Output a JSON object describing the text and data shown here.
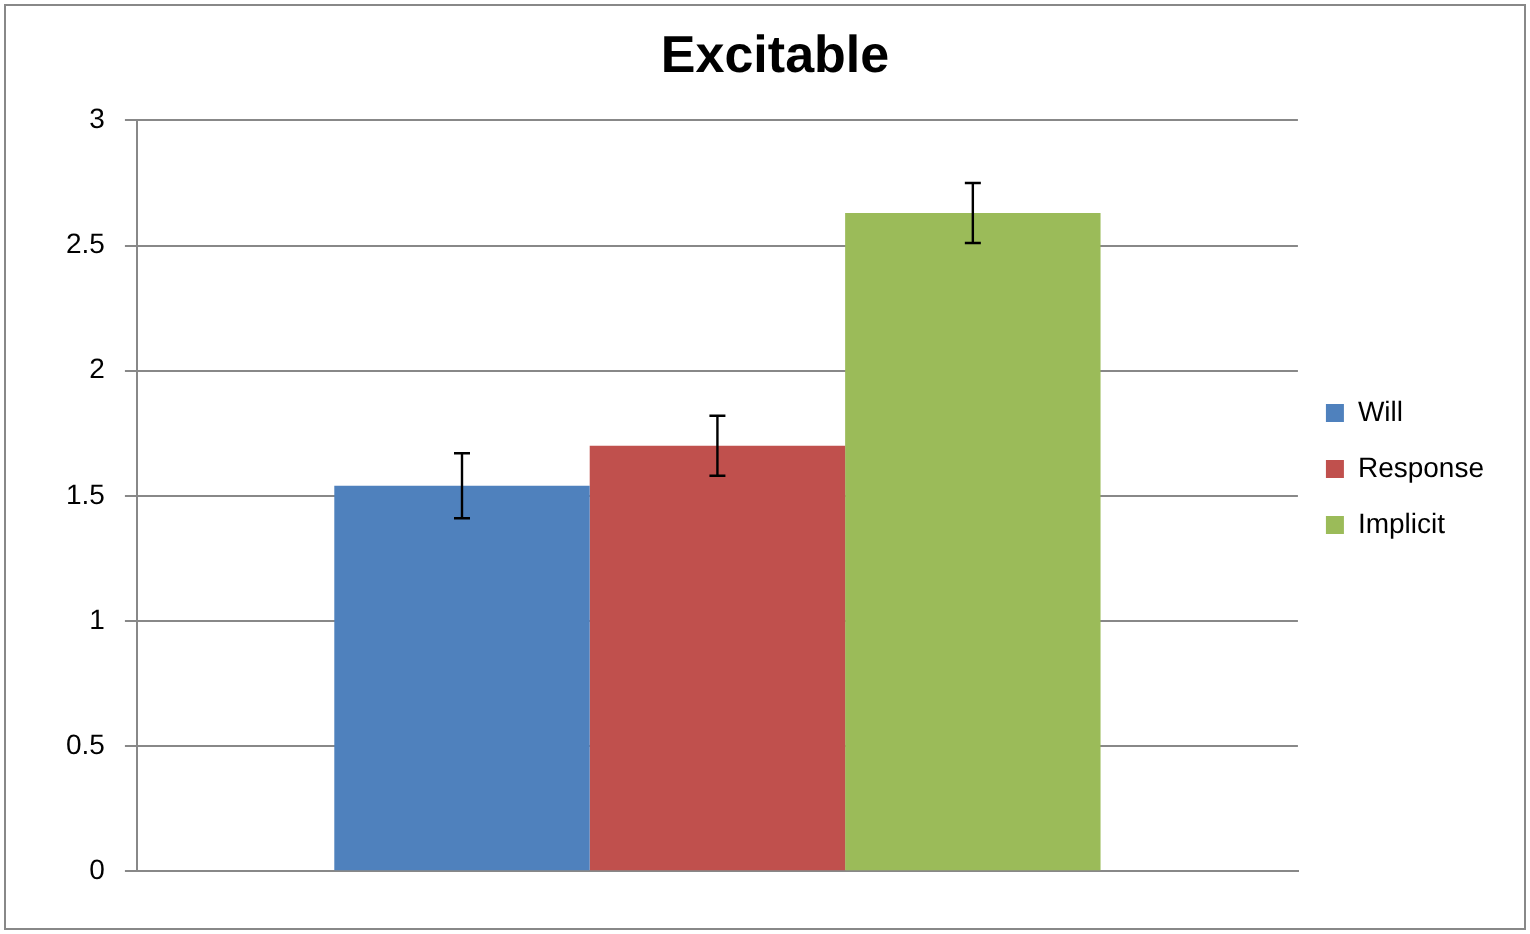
{
  "chart_data": {
    "type": "bar",
    "title": "Excitable",
    "categories": [
      null
    ],
    "series": [
      {
        "name": "Will",
        "color": "#4f81bd",
        "values": [
          1.54
        ],
        "errors": [
          0.13
        ]
      },
      {
        "name": "Response",
        "color": "#c0504d",
        "values": [
          1.7
        ],
        "errors": [
          0.12
        ]
      },
      {
        "name": "Implicit",
        "color": "#9bbb59",
        "values": [
          2.63
        ],
        "errors": [
          0.12
        ]
      }
    ],
    "ylim": [
      0,
      3
    ],
    "yticks": [
      0,
      0.5,
      1,
      1.5,
      2,
      2.5,
      3
    ],
    "grid": "y",
    "legend": "right"
  }
}
